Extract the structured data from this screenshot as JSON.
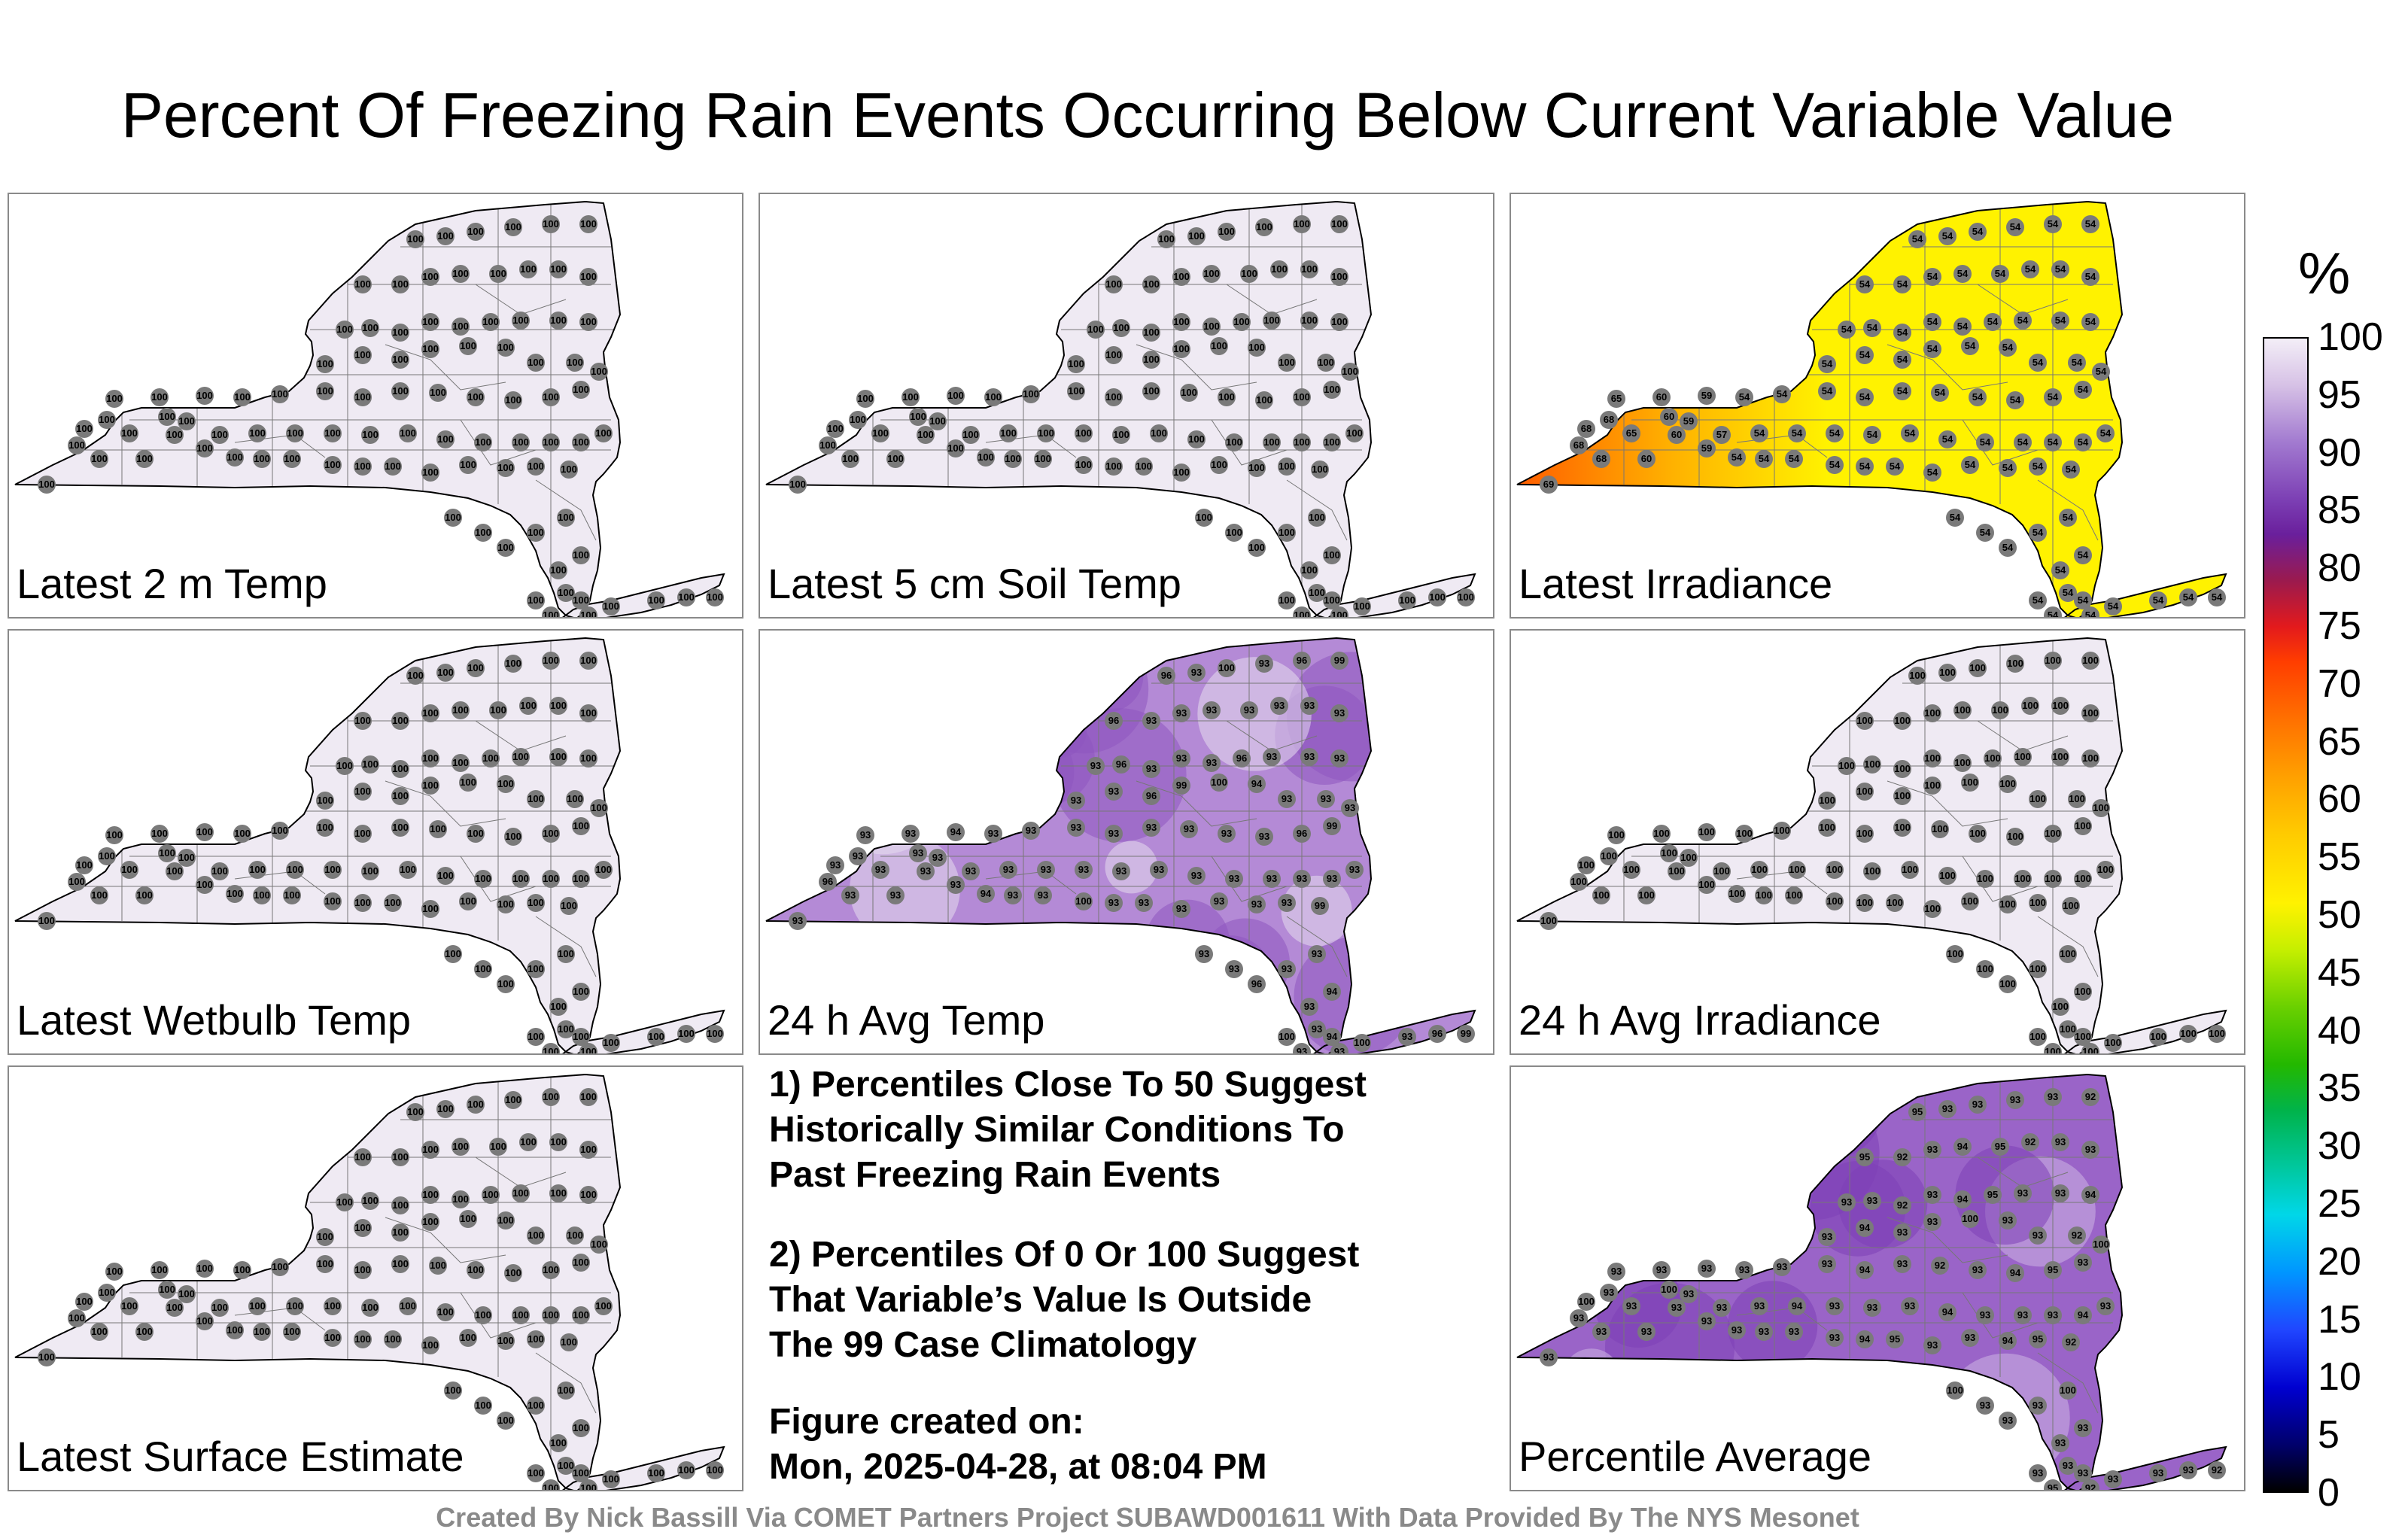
{
  "title": "Percent Of Freezing Rain Events Occurring Below Current Variable Value",
  "panels": [
    {
      "id": "p0",
      "label": "Latest 2 m Temp",
      "fill": "#efeaf3",
      "station_value": "100",
      "region_values": []
    },
    {
      "id": "p1",
      "label": "Latest 5 cm Soil Temp",
      "fill": "#efeaf3",
      "station_value": "100",
      "region_values": []
    },
    {
      "id": "p2",
      "label": "Latest Irradiance",
      "fill": "#fff200",
      "west_fill": "#ff5a00",
      "mid_fill": "#ffb000",
      "station_value": "54",
      "region_values": [
        "71",
        "69",
        "68",
        "65",
        "60",
        "59",
        "57"
      ]
    },
    {
      "id": "p3",
      "label": "Latest Wetbulb Temp",
      "fill": "#efeaf3",
      "station_value": "100",
      "region_values": []
    },
    {
      "id": "p4",
      "label": "24 h Avg Temp",
      "fill": "#b48ad6",
      "accent_fill": "#8e55c0",
      "light_fill": "#e6dcef",
      "station_value": "93",
      "region_values": [
        "94",
        "96",
        "99",
        "100"
      ]
    },
    {
      "id": "p5",
      "label": "24 h Avg Irradiance",
      "fill": "#efeaf3",
      "station_value": "100",
      "region_values": []
    },
    {
      "id": "p6",
      "label": "Latest Surface Estimate",
      "fill": "#efeaf3",
      "station_value": "100",
      "region_values": []
    },
    {
      "id": "p8",
      "label": "Percentile Average",
      "fill": "#9a64c8",
      "accent_fill": "#7e3fb6",
      "light_fill": "#cdb4e4",
      "station_value": "93",
      "region_values": [
        "94",
        "95",
        "92",
        "100"
      ]
    }
  ],
  "notes": {
    "note1": [
      "1) Percentiles Close To 50 Suggest",
      "Historically Similar Conditions To",
      "Past Freezing Rain Events"
    ],
    "note2": [
      "2) Percentiles Of 0 Or 100 Suggest",
      "That Variable’s Value Is Outside",
      "The 99 Case Climatology"
    ],
    "created_label": "Figure created on:",
    "created_value": "Mon, 2025-04-28, at 08:04 PM"
  },
  "colorbar": {
    "unit": "%",
    "ticks": [
      "100",
      "95",
      "90",
      "85",
      "80",
      "75",
      "70",
      "65",
      "60",
      "55",
      "50",
      "45",
      "40",
      "35",
      "30",
      "25",
      "20",
      "15",
      "10",
      "5",
      "0"
    ]
  },
  "footer": "Created By Nick Bassill Via COMET Partners Project SUBAWD001611 With Data Provided By The NYS Mesonet"
}
